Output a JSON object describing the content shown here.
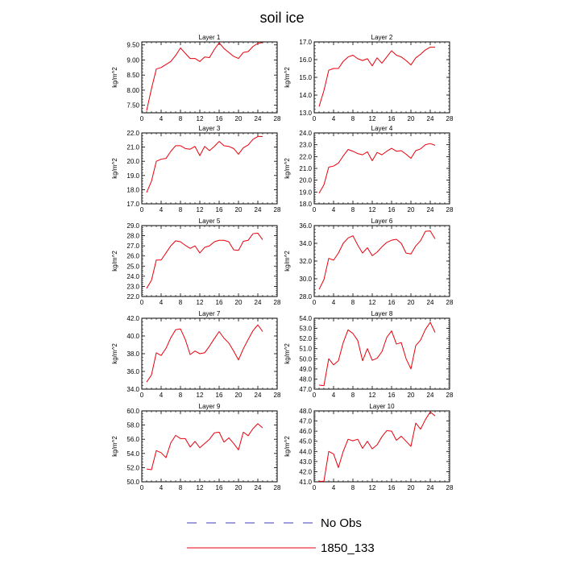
{
  "title": "soil ice",
  "colors": {
    "series": "#e8000b",
    "noobs": "#3f3fbf",
    "axis": "#000000"
  },
  "legend": [
    {
      "label": "No Obs",
      "style": "dashed",
      "color": "#3f3fbf"
    },
    {
      "label": "1850_133",
      "style": "solid",
      "color": "#e8000b"
    }
  ],
  "chart_data": [
    {
      "type": "line",
      "title": "Layer 1",
      "ylabel": "kg/m^2",
      "xlim": [
        0,
        28
      ],
      "xticks": [
        0,
        4,
        8,
        12,
        16,
        20,
        24,
        28
      ],
      "ylim": [
        7.25,
        9.6
      ],
      "yticks": [
        7.5,
        8.0,
        8.5,
        9.0,
        9.5
      ],
      "yticklabels": [
        "7.50",
        "8.00",
        "8.50",
        "9.00",
        "9.50"
      ],
      "x": [
        1,
        2,
        3,
        4,
        5,
        6,
        7,
        8,
        9,
        10,
        11,
        12,
        13,
        14,
        15,
        16,
        17,
        18,
        19,
        20,
        21,
        22,
        23,
        24,
        25
      ],
      "series": [
        {
          "name": "1850_133",
          "values": [
            7.32,
            8.05,
            8.7,
            8.75,
            8.85,
            8.95,
            9.15,
            9.4,
            9.22,
            9.05,
            9.05,
            8.95,
            9.1,
            9.08,
            9.35,
            9.57,
            9.38,
            9.25,
            9.12,
            9.05,
            9.25,
            9.28,
            9.45,
            9.55,
            9.58
          ]
        }
      ]
    },
    {
      "type": "line",
      "title": "Layer 2",
      "ylabel": "kg/m^2",
      "xlim": [
        0,
        28
      ],
      "xticks": [
        0,
        4,
        8,
        12,
        16,
        20,
        24,
        28
      ],
      "ylim": [
        13.0,
        17.0
      ],
      "yticks": [
        13.0,
        14.0,
        15.0,
        16.0,
        17.0
      ],
      "yticklabels": [
        "13.0",
        "14.0",
        "15.0",
        "16.0",
        "17.0"
      ],
      "x": [
        1,
        2,
        3,
        4,
        5,
        6,
        7,
        8,
        9,
        10,
        11,
        12,
        13,
        14,
        15,
        16,
        17,
        18,
        19,
        20,
        21,
        22,
        23,
        24,
        25
      ],
      "series": [
        {
          "name": "1850_133",
          "values": [
            13.35,
            14.25,
            15.4,
            15.5,
            15.5,
            15.9,
            16.15,
            16.25,
            16.05,
            15.95,
            16.05,
            15.65,
            16.1,
            15.8,
            16.15,
            16.5,
            16.25,
            16.15,
            15.95,
            15.7,
            16.1,
            16.3,
            16.55,
            16.7,
            16.7
          ]
        }
      ]
    },
    {
      "type": "line",
      "title": "Layer 3",
      "ylabel": "kg/m^2",
      "xlim": [
        0,
        28
      ],
      "xticks": [
        0,
        4,
        8,
        12,
        16,
        20,
        24,
        28
      ],
      "ylim": [
        17.0,
        22.0
      ],
      "yticks": [
        17.0,
        18.0,
        19.0,
        20.0,
        21.0,
        22.0
      ],
      "yticklabels": [
        "17.0",
        "18.0",
        "19.0",
        "20.0",
        "21.0",
        "22.0"
      ],
      "x": [
        1,
        2,
        3,
        4,
        5,
        6,
        7,
        8,
        9,
        10,
        11,
        12,
        13,
        14,
        15,
        16,
        17,
        18,
        19,
        20,
        21,
        22,
        23,
        24,
        25
      ],
      "series": [
        {
          "name": "1850_133",
          "values": [
            17.8,
            18.6,
            20.0,
            20.15,
            20.2,
            20.7,
            21.1,
            21.1,
            20.9,
            20.85,
            21.05,
            20.4,
            21.05,
            20.75,
            21.05,
            21.4,
            21.1,
            21.05,
            20.9,
            20.5,
            20.95,
            21.15,
            21.55,
            21.75,
            21.75
          ]
        }
      ]
    },
    {
      "type": "line",
      "title": "Layer 4",
      "ylabel": "kg/m^2",
      "xlim": [
        0,
        28
      ],
      "xticks": [
        0,
        4,
        8,
        12,
        16,
        20,
        24,
        28
      ],
      "ylim": [
        18.0,
        24.0
      ],
      "yticks": [
        18.0,
        19.0,
        20.0,
        21.0,
        22.0,
        23.0,
        24.0
      ],
      "yticklabels": [
        "18.0",
        "19.0",
        "20.0",
        "21.0",
        "22.0",
        "23.0",
        "24.0"
      ],
      "x": [
        1,
        2,
        3,
        4,
        5,
        6,
        7,
        8,
        9,
        10,
        11,
        12,
        13,
        14,
        15,
        16,
        17,
        18,
        19,
        20,
        21,
        22,
        23,
        24,
        25
      ],
      "series": [
        {
          "name": "1850_133",
          "values": [
            18.9,
            19.6,
            21.1,
            21.2,
            21.45,
            22.05,
            22.6,
            22.45,
            22.25,
            22.15,
            22.4,
            21.65,
            22.35,
            22.15,
            22.45,
            22.7,
            22.45,
            22.5,
            22.2,
            21.85,
            22.5,
            22.65,
            23.0,
            23.1,
            22.95
          ]
        }
      ]
    },
    {
      "type": "line",
      "title": "Layer 5",
      "ylabel": "kg/m^2",
      "xlim": [
        0,
        28
      ],
      "xticks": [
        0,
        4,
        8,
        12,
        16,
        20,
        24,
        28
      ],
      "ylim": [
        22.0,
        29.0
      ],
      "yticks": [
        22.0,
        23.0,
        24.0,
        25.0,
        26.0,
        27.0,
        28.0,
        29.0
      ],
      "yticklabels": [
        "22.0",
        "23.0",
        "24.0",
        "25.0",
        "26.0",
        "27.0",
        "28.0",
        "29.0"
      ],
      "x": [
        1,
        2,
        3,
        4,
        5,
        6,
        7,
        8,
        9,
        10,
        11,
        12,
        13,
        14,
        15,
        16,
        17,
        18,
        19,
        20,
        21,
        22,
        23,
        24,
        25
      ],
      "series": [
        {
          "name": "1850_133",
          "values": [
            22.8,
            23.6,
            25.6,
            25.6,
            26.3,
            27.0,
            27.5,
            27.4,
            27.05,
            26.75,
            27.0,
            26.3,
            26.85,
            27.0,
            27.4,
            27.55,
            27.55,
            27.4,
            26.6,
            26.55,
            27.45,
            27.55,
            28.2,
            28.25,
            27.6
          ]
        }
      ]
    },
    {
      "type": "line",
      "title": "Layer 6",
      "ylabel": "kg/m^2",
      "xlim": [
        0,
        28
      ],
      "xticks": [
        0,
        4,
        8,
        12,
        16,
        20,
        24,
        28
      ],
      "ylim": [
        28.0,
        36.0
      ],
      "yticks": [
        28.0,
        30.0,
        32.0,
        34.0,
        36.0
      ],
      "yticklabels": [
        "28.0",
        "30.0",
        "32.0",
        "34.0",
        "36.0"
      ],
      "x": [
        1,
        2,
        3,
        4,
        5,
        6,
        7,
        8,
        9,
        10,
        11,
        12,
        13,
        14,
        15,
        16,
        17,
        18,
        19,
        20,
        21,
        22,
        23,
        24,
        25
      ],
      "series": [
        {
          "name": "1850_133",
          "values": [
            28.8,
            29.9,
            32.3,
            32.1,
            32.9,
            34.0,
            34.6,
            34.85,
            33.8,
            32.9,
            33.5,
            32.6,
            33.0,
            33.6,
            34.1,
            34.35,
            34.45,
            34.0,
            32.9,
            32.8,
            33.7,
            34.3,
            35.35,
            35.4,
            34.5
          ]
        }
      ]
    },
    {
      "type": "line",
      "title": "Layer 7",
      "ylabel": "kg/m^2",
      "xlim": [
        0,
        28
      ],
      "xticks": [
        0,
        4,
        8,
        12,
        16,
        20,
        24,
        28
      ],
      "ylim": [
        34.0,
        42.0
      ],
      "yticks": [
        34.0,
        36.0,
        38.0,
        40.0,
        42.0
      ],
      "yticklabels": [
        "34.0",
        "36.0",
        "38.0",
        "40.0",
        "42.0"
      ],
      "x": [
        1,
        2,
        3,
        4,
        5,
        6,
        7,
        8,
        9,
        10,
        11,
        12,
        13,
        14,
        15,
        16,
        17,
        18,
        19,
        20,
        21,
        22,
        23,
        24,
        25
      ],
      "series": [
        {
          "name": "1850_133",
          "values": [
            34.8,
            35.6,
            38.1,
            37.8,
            38.6,
            39.8,
            40.7,
            40.8,
            39.6,
            37.9,
            38.3,
            38.0,
            38.1,
            38.85,
            39.7,
            40.5,
            39.75,
            39.2,
            38.3,
            37.3,
            38.55,
            39.6,
            40.6,
            41.25,
            40.5
          ]
        }
      ]
    },
    {
      "type": "line",
      "title": "Layer 8",
      "ylabel": "kg/m^2",
      "xlim": [
        0,
        28
      ],
      "xticks": [
        0,
        4,
        8,
        12,
        16,
        20,
        24,
        28
      ],
      "ylim": [
        47.0,
        54.0
      ],
      "yticks": [
        47.0,
        48.0,
        49.0,
        50.0,
        51.0,
        52.0,
        53.0,
        54.0
      ],
      "yticklabels": [
        "47.0",
        "48.0",
        "49.0",
        "50.0",
        "51.0",
        "52.0",
        "53.0",
        "54.0"
      ],
      "x": [
        1,
        2,
        3,
        4,
        5,
        6,
        7,
        8,
        9,
        10,
        11,
        12,
        13,
        14,
        15,
        16,
        17,
        18,
        19,
        20,
        21,
        22,
        23,
        24,
        25
      ],
      "series": [
        {
          "name": "1850_133",
          "values": [
            47.4,
            47.35,
            50.0,
            49.4,
            49.8,
            51.6,
            52.85,
            52.5,
            51.8,
            49.8,
            51.0,
            49.85,
            50.05,
            50.7,
            52.1,
            52.75,
            51.45,
            51.6,
            50.0,
            49.0,
            51.3,
            51.85,
            52.9,
            53.6,
            52.6
          ]
        }
      ]
    },
    {
      "type": "line",
      "title": "Layer 9",
      "ylabel": "kg/m^2",
      "xlim": [
        0,
        28
      ],
      "xticks": [
        0,
        4,
        8,
        12,
        16,
        20,
        24,
        28
      ],
      "ylim": [
        50.0,
        60.0
      ],
      "yticks": [
        50.0,
        52.0,
        54.0,
        56.0,
        58.0,
        60.0
      ],
      "yticklabels": [
        "50.0",
        "52.0",
        "54.0",
        "56.0",
        "58.0",
        "60.0"
      ],
      "x": [
        1,
        2,
        3,
        4,
        5,
        6,
        7,
        8,
        9,
        10,
        11,
        12,
        13,
        14,
        15,
        16,
        17,
        18,
        19,
        20,
        21,
        22,
        23,
        24,
        25
      ],
      "series": [
        {
          "name": "1850_133",
          "values": [
            51.8,
            51.7,
            54.4,
            54.1,
            53.4,
            55.5,
            56.55,
            56.1,
            56.1,
            54.9,
            55.7,
            54.8,
            55.4,
            56.0,
            56.9,
            57.0,
            55.6,
            56.2,
            55.4,
            54.5,
            57.0,
            56.5,
            57.5,
            58.2,
            57.6
          ]
        }
      ]
    },
    {
      "type": "line",
      "title": "Layer 10",
      "ylabel": "kg/m^2",
      "xlim": [
        0,
        28
      ],
      "xticks": [
        0,
        4,
        8,
        12,
        16,
        20,
        24,
        28
      ],
      "ylim": [
        41.0,
        48.0
      ],
      "yticks": [
        41.0,
        42.0,
        43.0,
        44.0,
        45.0,
        46.0,
        47.0,
        48.0
      ],
      "yticklabels": [
        "41.0",
        "42.0",
        "43.0",
        "44.0",
        "45.0",
        "46.0",
        "47.0",
        "48.0"
      ],
      "x": [
        1,
        2,
        3,
        4,
        5,
        6,
        7,
        8,
        9,
        10,
        11,
        12,
        13,
        14,
        15,
        16,
        17,
        18,
        19,
        20,
        21,
        22,
        23,
        24,
        25
      ],
      "series": [
        {
          "name": "1850_133",
          "values": [
            41.05,
            41.05,
            44.0,
            43.75,
            42.4,
            44.0,
            45.2,
            45.05,
            45.2,
            44.3,
            45.0,
            44.25,
            44.65,
            45.45,
            46.05,
            46.0,
            45.1,
            45.5,
            45.0,
            44.5,
            46.8,
            46.2,
            47.15,
            47.9,
            47.5
          ]
        }
      ]
    }
  ]
}
